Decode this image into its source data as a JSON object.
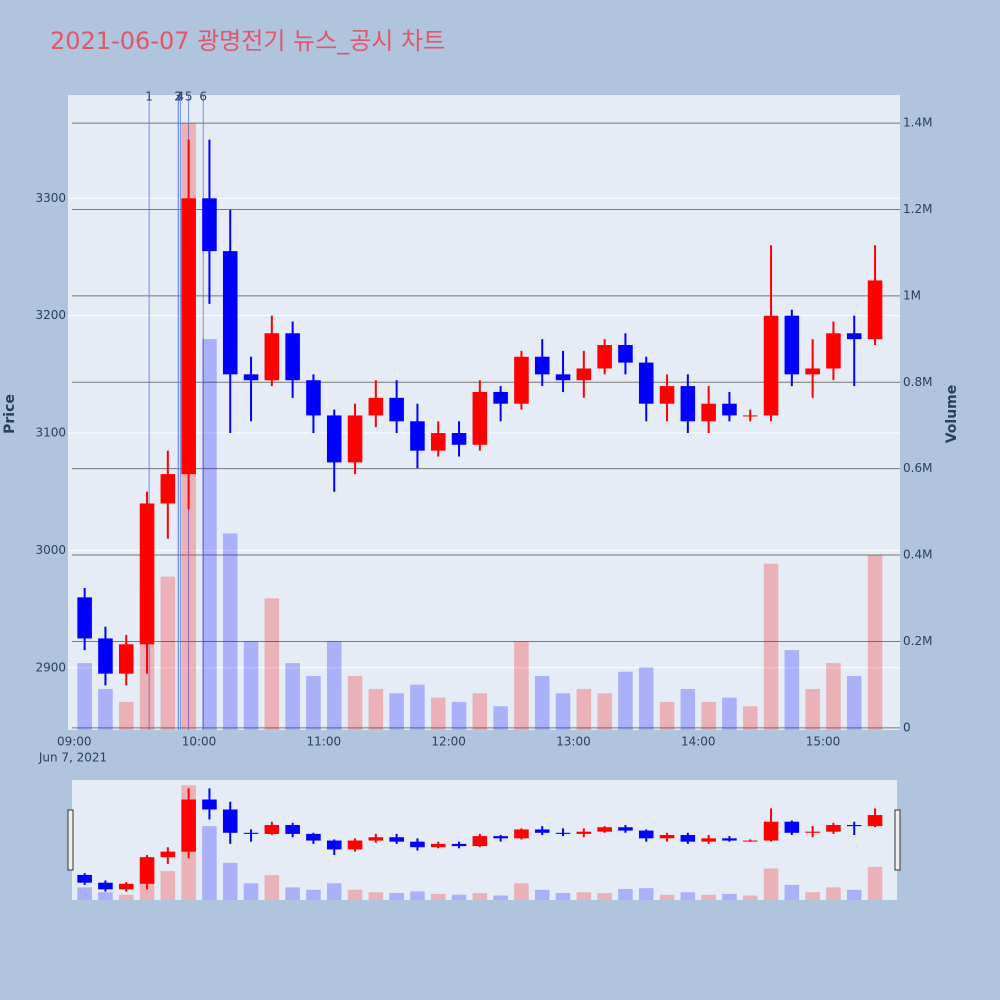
{
  "chart_data": {
    "type": "candlestick",
    "title": "2021-06-07 광명전기 뉴스_공시 차트",
    "ylabel": "Price",
    "y2label": "Volume",
    "x": [
      "09:00",
      "09:10",
      "09:20",
      "09:30",
      "09:40",
      "09:50",
      "10:00",
      "10:10",
      "10:20",
      "10:30",
      "10:40",
      "10:50",
      "11:00",
      "11:10",
      "11:20",
      "11:30",
      "11:40",
      "11:50",
      "12:00",
      "12:10",
      "12:20",
      "12:30",
      "12:40",
      "12:50",
      "13:00",
      "13:10",
      "13:20",
      "13:30",
      "13:40",
      "13:50",
      "14:00",
      "14:10",
      "14:20",
      "14:30",
      "14:40",
      "14:50",
      "15:00",
      "15:10",
      "15:20"
    ],
    "open": [
      2960,
      2925,
      2895,
      2920,
      3040,
      3065,
      3300,
      3255,
      3150,
      3145,
      3185,
      3145,
      3115,
      3075,
      3115,
      3130,
      3110,
      3085,
      3100,
      3090,
      3135,
      3125,
      3165,
      3150,
      3145,
      3155,
      3175,
      3160,
      3125,
      3140,
      3110,
      3125,
      3115,
      3115,
      3200,
      3150,
      3155,
      3185,
      3180
    ],
    "high": [
      2968,
      2935,
      2928,
      3050,
      3085,
      3350,
      3350,
      3290,
      3165,
      3200,
      3195,
      3150,
      3120,
      3125,
      3145,
      3145,
      3125,
      3110,
      3110,
      3145,
      3140,
      3170,
      3180,
      3170,
      3170,
      3180,
      3185,
      3165,
      3150,
      3150,
      3140,
      3135,
      3120,
      3260,
      3205,
      3180,
      3195,
      3200,
      3260
    ],
    "low": [
      2915,
      2885,
      2885,
      2895,
      3010,
      3035,
      3210,
      3100,
      3110,
      3140,
      3130,
      3100,
      3050,
      3065,
      3105,
      3100,
      3070,
      3080,
      3080,
      3085,
      3110,
      3120,
      3140,
      3135,
      3130,
      3150,
      3150,
      3110,
      3110,
      3100,
      3100,
      3110,
      3110,
      3110,
      3140,
      3130,
      3145,
      3140,
      3175
    ],
    "close": [
      2925,
      2895,
      2920,
      3040,
      3065,
      3300,
      3255,
      3150,
      3145,
      3185,
      3145,
      3115,
      3075,
      3115,
      3130,
      3110,
      3085,
      3100,
      3090,
      3135,
      3125,
      3165,
      3150,
      3145,
      3155,
      3175,
      3160,
      3125,
      3140,
      3110,
      3125,
      3115,
      3115,
      3200,
      3150,
      3155,
      3185,
      3180,
      3230
    ],
    "volume": [
      150000,
      90000,
      60000,
      320000,
      350000,
      1400000,
      900000,
      450000,
      200000,
      300000,
      150000,
      120000,
      200000,
      120000,
      90000,
      80000,
      100000,
      70000,
      60000,
      80000,
      50000,
      200000,
      120000,
      80000,
      90000,
      80000,
      130000,
      140000,
      60000,
      90000,
      60000,
      70000,
      50000,
      380000,
      180000,
      90000,
      150000,
      120000,
      400000
    ],
    "up_color": "#ff0000",
    "down_color": "#0000ff",
    "ylim": [
      2847,
      3388
    ],
    "yticks": [
      2900,
      3000,
      3100,
      3200,
      3300
    ],
    "y2lim": [
      -5000,
      1465000
    ],
    "y2ticks": [
      0,
      {
        "value": 200000,
        "label": "0.2M"
      },
      {
        "value": 400000,
        "label": "0.4M"
      },
      {
        "value": 600000,
        "label": "0.6M"
      },
      {
        "value": 800000,
        "label": "0.8M"
      },
      {
        "value": 1000000,
        "label": "1M"
      },
      {
        "value": 1200000,
        "label": "1.2M"
      },
      {
        "value": 1400000,
        "label": "1.4M"
      }
    ],
    "xlim": [
      "08:57",
      "15:37"
    ],
    "xticks": [
      "09:00",
      "10:00",
      "11:00",
      "12:00",
      "13:00",
      "14:00",
      "15:00"
    ],
    "date_label": "Jun 7, 2021",
    "annotations": [
      {
        "time": "09:36",
        "label": "1"
      },
      {
        "time": "09:50",
        "label": "2"
      },
      {
        "time": "09:50",
        "label": "3"
      },
      {
        "time": "09:51",
        "label": "4"
      },
      {
        "time": "09:55",
        "label": "5"
      },
      {
        "time": "10:02",
        "label": "6"
      }
    ],
    "grid": true
  }
}
